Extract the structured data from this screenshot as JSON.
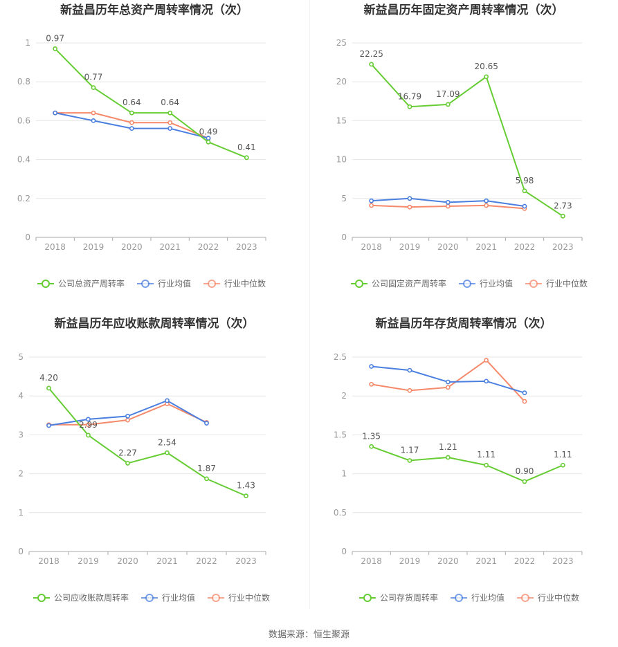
{
  "source": "数据来源：恒生聚源",
  "colors": {
    "company": "#66cc33",
    "avg": "#4a7fe0",
    "median": "#f5896a"
  },
  "chart_data": [
    {
      "type": "line",
      "title": "新益昌历年总资产周转率情况（次）",
      "categories": [
        "2018",
        "2019",
        "2020",
        "2021",
        "2022",
        "2023"
      ],
      "ylim": [
        0,
        1
      ],
      "yticks": [
        "0",
        "0.2",
        "0.4",
        "0.6",
        "0.8",
        "1"
      ],
      "series": [
        {
          "name": "公司总资产周转率",
          "values": [
            0.97,
            0.77,
            0.64,
            0.64,
            0.49,
            0.41
          ],
          "labels": [
            "0.97",
            "0.77",
            "0.64",
            "0.64",
            "0.49",
            "0.41"
          ]
        },
        {
          "name": "行业均值",
          "values": [
            0.64,
            0.6,
            0.56,
            0.56,
            0.51,
            null
          ]
        },
        {
          "name": "行业中位数",
          "values": [
            0.64,
            0.64,
            0.59,
            0.59,
            0.51,
            null
          ]
        }
      ]
    },
    {
      "type": "line",
      "title": "新益昌历年固定资产周转率情况（次）",
      "categories": [
        "2018",
        "2019",
        "2020",
        "2021",
        "2022",
        "2023"
      ],
      "ylim": [
        0,
        25
      ],
      "yticks": [
        "0",
        "5",
        "10",
        "15",
        "20",
        "25"
      ],
      "series": [
        {
          "name": "公司固定资产周转率",
          "values": [
            22.25,
            16.79,
            17.09,
            20.65,
            5.98,
            2.73
          ],
          "labels": [
            "22.25",
            "16.79",
            "17.09",
            "20.65",
            "5.98",
            "2.73"
          ]
        },
        {
          "name": "行业均值",
          "values": [
            4.7,
            5.0,
            4.5,
            4.7,
            4.0,
            null
          ]
        },
        {
          "name": "行业中位数",
          "values": [
            4.1,
            3.9,
            4.0,
            4.1,
            3.7,
            null
          ]
        }
      ]
    },
    {
      "type": "line",
      "title": "新益昌历年应收账款周转率情况（次）",
      "categories": [
        "2018",
        "2019",
        "2020",
        "2021",
        "2022",
        "2023"
      ],
      "ylim": [
        0,
        5
      ],
      "yticks": [
        "0",
        "1",
        "2",
        "3",
        "4",
        "5"
      ],
      "series": [
        {
          "name": "公司应收账款周转率",
          "values": [
            4.2,
            2.99,
            2.27,
            2.54,
            1.87,
            1.43
          ],
          "labels": [
            "4.20",
            "2.99",
            "2.27",
            "2.54",
            "1.87",
            "1.43"
          ]
        },
        {
          "name": "行业均值",
          "values": [
            3.24,
            3.4,
            3.48,
            3.88,
            3.3,
            null
          ]
        },
        {
          "name": "行业中位数",
          "values": [
            3.26,
            3.26,
            3.38,
            3.8,
            3.32,
            null
          ]
        }
      ]
    },
    {
      "type": "line",
      "title": "新益昌历年存货周转率情况（次）",
      "categories": [
        "2018",
        "2019",
        "2020",
        "2021",
        "2022",
        "2023"
      ],
      "ylim": [
        0,
        2.5
      ],
      "yticks": [
        "0",
        "0.5",
        "1",
        "1.5",
        "2",
        "2.5"
      ],
      "series": [
        {
          "name": "公司存货周转率",
          "values": [
            1.35,
            1.17,
            1.21,
            1.11,
            0.9,
            1.11
          ],
          "labels": [
            "1.35",
            "1.17",
            "1.21",
            "1.11",
            "0.90",
            "1.11"
          ]
        },
        {
          "name": "行业均值",
          "values": [
            2.38,
            2.33,
            2.18,
            2.19,
            2.04,
            null
          ]
        },
        {
          "name": "行业中位数",
          "values": [
            2.15,
            2.07,
            2.11,
            2.46,
            1.93,
            null
          ]
        }
      ]
    }
  ]
}
